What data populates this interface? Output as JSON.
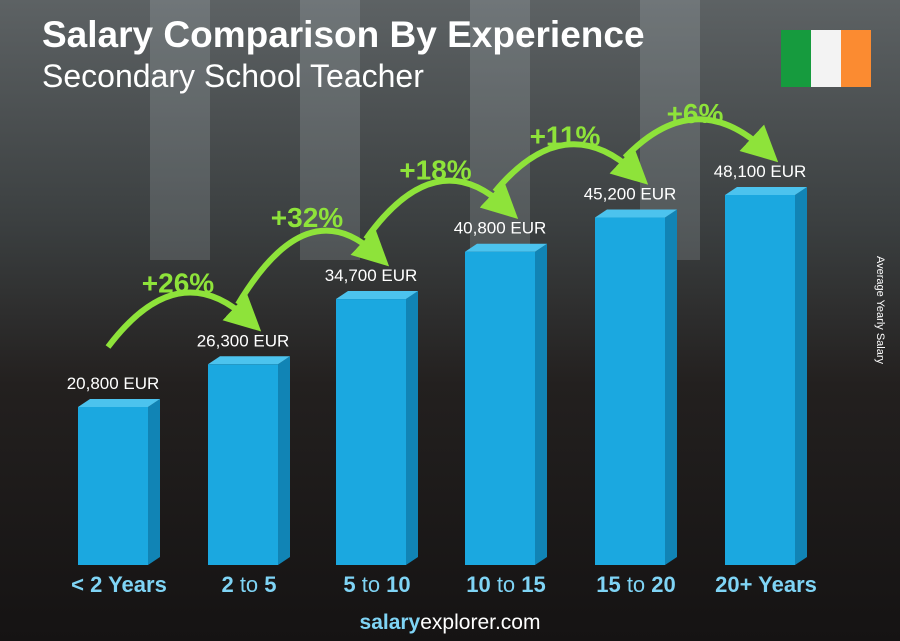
{
  "chart_data": {
    "type": "bar",
    "title": "Salary Comparison By Experience",
    "subtitle": "Secondary School Teacher",
    "ylabel": "Average Yearly Salary",
    "categories": [
      {
        "a": "< 2 Years",
        "b": "",
        "c": ""
      },
      {
        "a": "2",
        "b": " to ",
        "c": "5"
      },
      {
        "a": "5",
        "b": " to ",
        "c": "10"
      },
      {
        "a": "10",
        "b": " to ",
        "c": "15"
      },
      {
        "a": "15",
        "b": " to ",
        "c": "20"
      },
      {
        "a": "20+ Years",
        "b": "",
        "c": ""
      }
    ],
    "values": [
      20800,
      26300,
      34700,
      40800,
      45200,
      48100
    ],
    "value_labels": [
      "20,800 EUR",
      "26,300 EUR",
      "34,700 EUR",
      "40,800 EUR",
      "45,200 EUR",
      "48,100 EUR"
    ],
    "changes": [
      "+26%",
      "+32%",
      "+18%",
      "+11%",
      "+6%"
    ],
    "colors": {
      "bar": "#1ba8e0",
      "bar_side": "#1184b5",
      "change": "#8ee33a",
      "category": "#7fd4f5"
    }
  },
  "flag": {
    "colors": [
      "#169b3e",
      "#f3f3f3",
      "#fb8b31"
    ]
  },
  "footer": {
    "bold": "salary",
    "rest": "explorer.com"
  }
}
